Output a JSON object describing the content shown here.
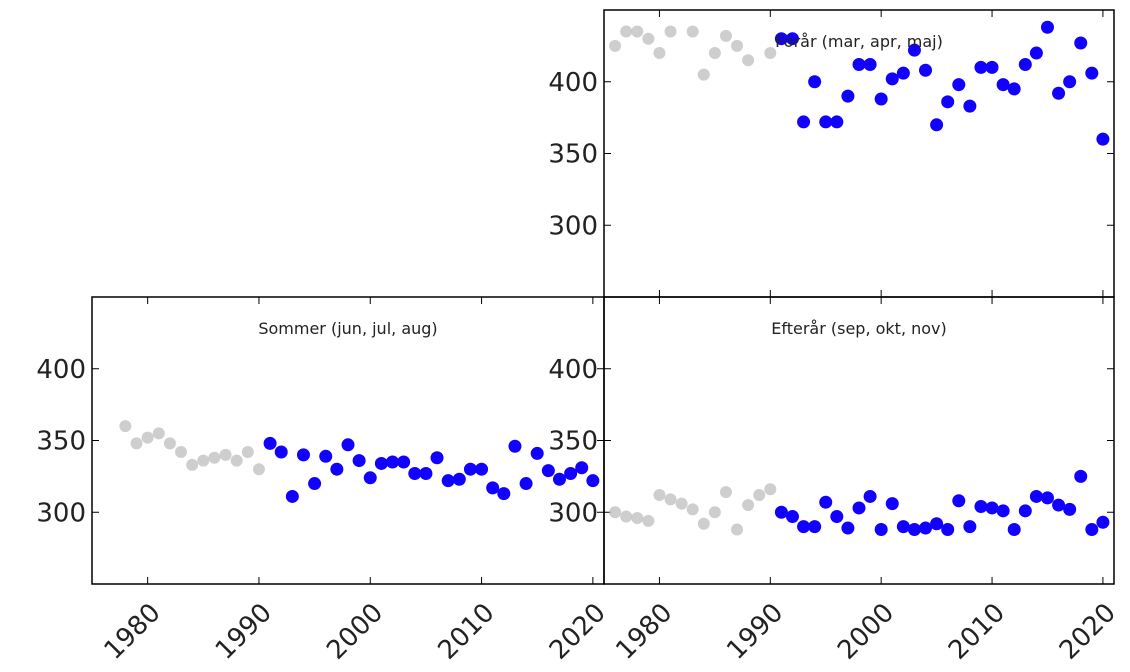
{
  "chart_data": [
    {
      "type": "scatter",
      "title": "Forår (mar, apr, maj)",
      "xlim": [
        1975,
        2021
      ],
      "ylim": [
        250,
        450
      ],
      "yticks": [
        "300",
        "350",
        "400"
      ],
      "xticks": [],
      "colors": {
        "background": "#bdbdbd",
        "highlight": "#1100ff"
      },
      "background_points": {
        "x": [
          1976,
          1977,
          1978,
          1979,
          1980,
          1981,
          1983,
          1984,
          1985,
          1986,
          1987,
          1988,
          1990
        ],
        "y": [
          425,
          435,
          435,
          430,
          420,
          435,
          435,
          405,
          420,
          432,
          425,
          415,
          420
        ]
      },
      "highlight_points": {
        "x": [
          1991,
          1992,
          1993,
          1994,
          1995,
          1996,
          1997,
          1998,
          1999,
          2000,
          2001,
          2002,
          2003,
          2004,
          2005,
          2006,
          2007,
          2008,
          2009,
          2010,
          2011,
          2012,
          2013,
          2014,
          2015,
          2016,
          2017,
          2018,
          2019,
          2020
        ],
        "y": [
          430,
          430,
          372,
          400,
          372,
          372,
          390,
          412,
          412,
          388,
          402,
          406,
          422,
          408,
          370,
          386,
          398,
          383,
          410,
          410,
          398,
          395,
          412,
          420,
          438,
          392,
          400,
          427,
          406,
          360
        ]
      }
    },
    {
      "type": "scatter",
      "title": "Sommer (jun, jul, aug)",
      "xlim": [
        1975,
        2021
      ],
      "ylim": [
        250,
        450
      ],
      "yticks": [
        "300",
        "350",
        "400"
      ],
      "xticks": [
        "1980",
        "1990",
        "2000",
        "2010",
        "2020"
      ],
      "colors": {
        "background": "#bdbdbd",
        "highlight": "#1100ff"
      },
      "background_points": {
        "x": [
          1978,
          1979,
          1980,
          1981,
          1982,
          1983,
          1984,
          1985,
          1986,
          1987,
          1988,
          1989,
          1990
        ],
        "y": [
          360,
          348,
          352,
          355,
          348,
          342,
          333,
          336,
          338,
          340,
          336,
          342,
          330
        ]
      },
      "highlight_points": {
        "x": [
          1991,
          1992,
          1993,
          1994,
          1995,
          1996,
          1997,
          1998,
          1999,
          2000,
          2001,
          2002,
          2003,
          2004,
          2005,
          2006,
          2007,
          2008,
          2009,
          2010,
          2011,
          2012,
          2013,
          2014,
          2015,
          2016,
          2017,
          2018,
          2019,
          2020
        ],
        "y": [
          348,
          342,
          311,
          340,
          320,
          339,
          330,
          347,
          336,
          324,
          334,
          335,
          335,
          327,
          327,
          338,
          322,
          323,
          330,
          330,
          317,
          313,
          346,
          320,
          341,
          329,
          323,
          327,
          331,
          322
        ]
      }
    },
    {
      "type": "scatter",
      "title": "Efterår (sep, okt, nov)",
      "xlim": [
        1975,
        2021
      ],
      "ylim": [
        250,
        450
      ],
      "yticks": [
        "300",
        "350",
        "400"
      ],
      "xticks": [
        "1980",
        "1990",
        "2000",
        "2010",
        "2020"
      ],
      "colors": {
        "background": "#bdbdbd",
        "highlight": "#1100ff"
      },
      "background_points": {
        "x": [
          1976,
          1977,
          1978,
          1979,
          1980,
          1981,
          1982,
          1983,
          1984,
          1985,
          1986,
          1987,
          1988,
          1989,
          1990
        ],
        "y": [
          300,
          297,
          296,
          294,
          312,
          309,
          306,
          302,
          292,
          300,
          314,
          288,
          305,
          312,
          316
        ]
      },
      "highlight_points": {
        "x": [
          1991,
          1992,
          1993,
          1994,
          1995,
          1996,
          1997,
          1998,
          1999,
          2000,
          2001,
          2002,
          2003,
          2004,
          2005,
          2006,
          2007,
          2008,
          2009,
          2010,
          2011,
          2012,
          2013,
          2014,
          2015,
          2016,
          2017,
          2018,
          2019,
          2020
        ],
        "y": [
          300,
          297,
          290,
          290,
          307,
          297,
          289,
          303,
          311,
          288,
          306,
          290,
          288,
          289,
          292,
          288,
          308,
          290,
          304,
          303,
          301,
          288,
          301,
          311,
          310,
          305,
          302,
          325,
          288,
          293
        ]
      }
    }
  ]
}
